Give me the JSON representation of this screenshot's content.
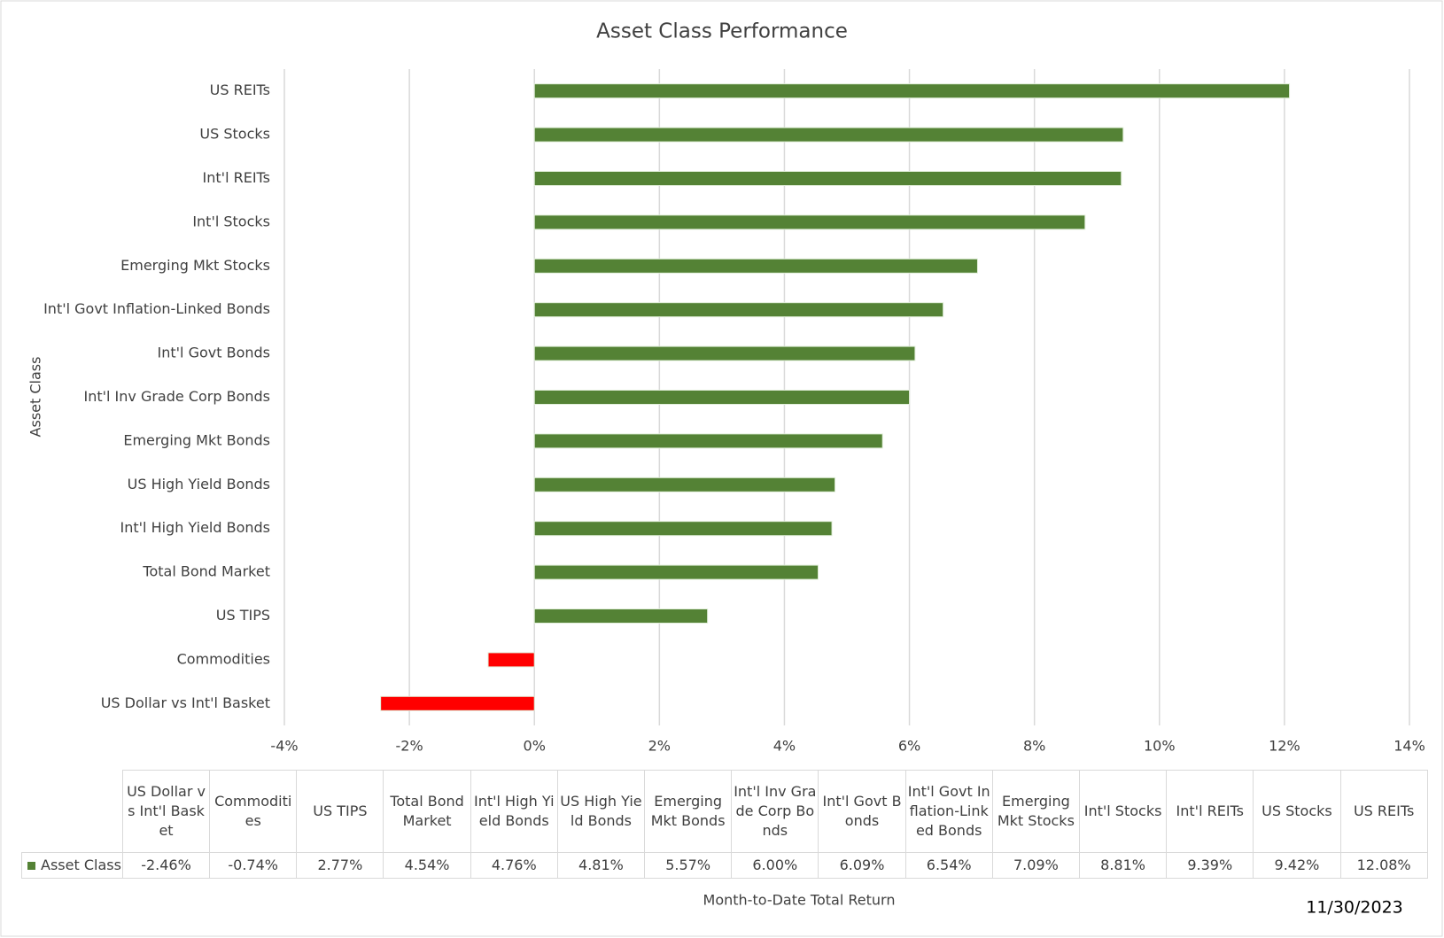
{
  "chart_data": {
    "type": "barh",
    "title": "Asset Class Performance",
    "y_axis_label": "Asset Class",
    "x_axis_label": "Month-to-Date Total Return",
    "annotation": "11/30/2023",
    "categories": [
      "US Dollar vs Int'l Basket",
      "Commodities",
      "US TIPS",
      "Total Bond Market",
      "Int'l High Yield Bonds",
      "US High Yield Bonds",
      "Emerging Mkt Bonds",
      "Int'l Inv Grade Corp Bonds",
      "Int'l Govt Bonds",
      "Int'l Govt Inflation-Linked Bonds",
      "Emerging Mkt Stocks",
      "Int'l Stocks",
      "Int'l REITs",
      "US Stocks",
      "US REITs"
    ],
    "series_name": "Asset Class",
    "values": [
      -2.46,
      -0.74,
      2.77,
      4.54,
      4.76,
      4.81,
      5.57,
      6.0,
      6.09,
      6.54,
      7.09,
      8.81,
      9.39,
      9.42,
      12.08
    ],
    "value_labels": [
      "-2.46%",
      "-0.74%",
      "2.77%",
      "4.54%",
      "4.76%",
      "4.81%",
      "5.57%",
      "6.00%",
      "6.09%",
      "6.54%",
      "7.09%",
      "8.81%",
      "9.39%",
      "9.42%",
      "12.08%"
    ],
    "color": "#548235",
    "negative_color": "#ff0000",
    "xlim": [
      -4,
      14
    ],
    "xticks": [
      {
        "value": -4,
        "label": "-4%"
      },
      {
        "value": -2,
        "label": "-2%"
      },
      {
        "value": 0,
        "label": "0%"
      },
      {
        "value": 2,
        "label": "2%"
      },
      {
        "value": 4,
        "label": "4%"
      },
      {
        "value": 6,
        "label": "6%"
      },
      {
        "value": 8,
        "label": "8%"
      },
      {
        "value": 10,
        "label": "10%"
      },
      {
        "value": 12,
        "label": "12%"
      },
      {
        "value": 14,
        "label": "14%"
      }
    ],
    "grid": true
  }
}
